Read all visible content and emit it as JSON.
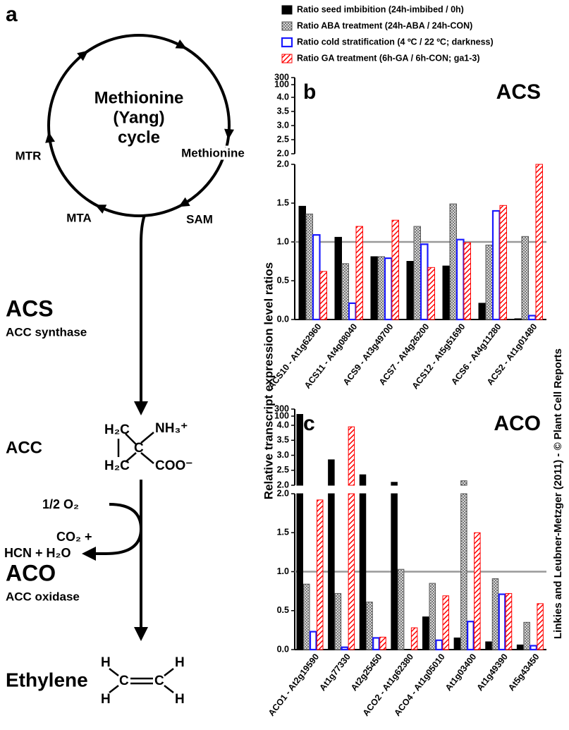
{
  "diagram": {
    "panel_label": "a",
    "cycle_title": [
      "Methionine",
      "(Yang)",
      "cycle"
    ],
    "cycle_nodes": [
      "Methionine",
      "SAM",
      "MTA",
      "MTR"
    ],
    "steps": [
      {
        "name": "ACS",
        "enzyme": "ACC synthase"
      },
      {
        "name": "ACO",
        "enzyme": "ACC oxidase"
      }
    ],
    "acc": {
      "label": "ACC",
      "structure": [
        "H₂C",
        "NH₃⁺",
        "C",
        "H₂C",
        "COO⁻"
      ]
    },
    "aco_input": "1/2 O₂",
    "aco_outputs": [
      "CO₂ +",
      "HCN + H₂O"
    ],
    "ethylene": {
      "label": "Ethylene",
      "atoms": [
        "H",
        "C",
        "C",
        "H",
        "H",
        "H"
      ]
    }
  },
  "y_label": "Relative transcript expression level ratios",
  "credit": "Linkies and Leubner-Metzger (2011) - © Plant Cell Reports",
  "chart_data": [
    {
      "type": "bar",
      "panel_label": "b",
      "title": "ACS",
      "categories": [
        "ACS10 - At1g62960",
        "ACS11 - At4g08040",
        "ACS9 - At3g49700",
        "ACS7 - At4g26200",
        "ACS12 - At5g51690",
        "ACS6 - At4g11280",
        "ACS2 - At1g01480"
      ],
      "series": [
        {
          "name": "Ratio seed imbibition (24h-imbibed / 0h)",
          "color": "#000000",
          "fill_style": "solid",
          "values": [
            1.46,
            1.06,
            0.81,
            0.75,
            0.69,
            0.21,
            0.01
          ]
        },
        {
          "name": "Ratio ABA treatment (24h-ABA / 24h-CON)",
          "color": "#555555",
          "fill_style": "dots",
          "values": [
            1.36,
            0.72,
            0.81,
            1.2,
            1.49,
            0.96,
            1.07
          ]
        },
        {
          "name": "Ratio cold stratification (4 ºC / 22 ºC; darkness)",
          "color": "#1a1aff",
          "fill_style": "outline",
          "values": [
            1.09,
            0.21,
            0.79,
            0.97,
            1.03,
            1.4,
            0.05
          ]
        },
        {
          "name": "Ratio GA treatment (6h-GA / 6h-CON; ga1-3)",
          "color": "#ff0000",
          "fill_style": "hatch",
          "values": [
            0.62,
            1.2,
            1.28,
            0.67,
            0.99,
            1.47,
            2.0
          ]
        }
      ],
      "y_segments": [
        {
          "ylim": [
            0,
            2
          ],
          "yticks": [
            {
              "value": 0,
              "label": "0.0"
            },
            0.5,
            {
              "value": 1,
              "label": "1.0"
            },
            1.5,
            {
              "value": 2,
              "label": "2.0"
            }
          ]
        },
        {
          "ylim": [
            2,
            4
          ],
          "yticks": [
            {
              "value": 2,
              "label": "2.0"
            },
            2.5,
            {
              "value": 3,
              "label": "3.0"
            },
            3.5,
            {
              "value": 4,
              "label": "4.0"
            }
          ]
        },
        {
          "ylim": [
            4,
            100
          ],
          "yticks": [
            100
          ]
        },
        {
          "ylim": [
            100,
            300
          ],
          "yticks": [
            300
          ]
        }
      ],
      "reference_line": 1
    },
    {
      "type": "bar",
      "panel_label": "c",
      "title": "ACO",
      "categories": [
        "ACO1 - At2g19590",
        "At1g77330",
        "At2g25450",
        "ACO2 - At1g62380",
        "ACO4 - At1g05010",
        "At1g03400",
        "At1g49390",
        "At5g43450"
      ],
      "series": [
        {
          "values": [
            150,
            2.85,
            2.35,
            2.1,
            0.42,
            0.15,
            0.1,
            0.06
          ]
        },
        {
          "values": [
            0.84,
            0.72,
            0.61,
            1.03,
            0.85,
            2.15,
            0.91,
            0.35
          ]
        },
        {
          "values": [
            0.23,
            0.03,
            0.15,
            0,
            0.12,
            0.36,
            0.71,
            0.05
          ]
        },
        {
          "values": [
            1.92,
            3.95,
            0.16,
            0.28,
            0.69,
            1.5,
            0.72,
            0.59
          ]
        }
      ],
      "y_segments": [
        {
          "ylim": [
            0,
            2
          ],
          "yticks": [
            {
              "value": 0,
              "label": "0.0"
            },
            0.5,
            {
              "value": 1,
              "label": "1.0"
            },
            1.5,
            {
              "value": 2,
              "label": "2.0"
            }
          ]
        },
        {
          "ylim": [
            2,
            4
          ],
          "yticks": [
            {
              "value": 2,
              "label": "2.0"
            },
            2.5,
            {
              "value": 3,
              "label": "3.0"
            },
            3.5,
            {
              "value": 4,
              "label": "4.0"
            }
          ]
        },
        {
          "ylim": [
            4,
            100
          ],
          "yticks": [
            100
          ]
        },
        {
          "ylim": [
            100,
            300
          ],
          "yticks": [
            300
          ]
        }
      ],
      "reference_line": 1
    }
  ]
}
